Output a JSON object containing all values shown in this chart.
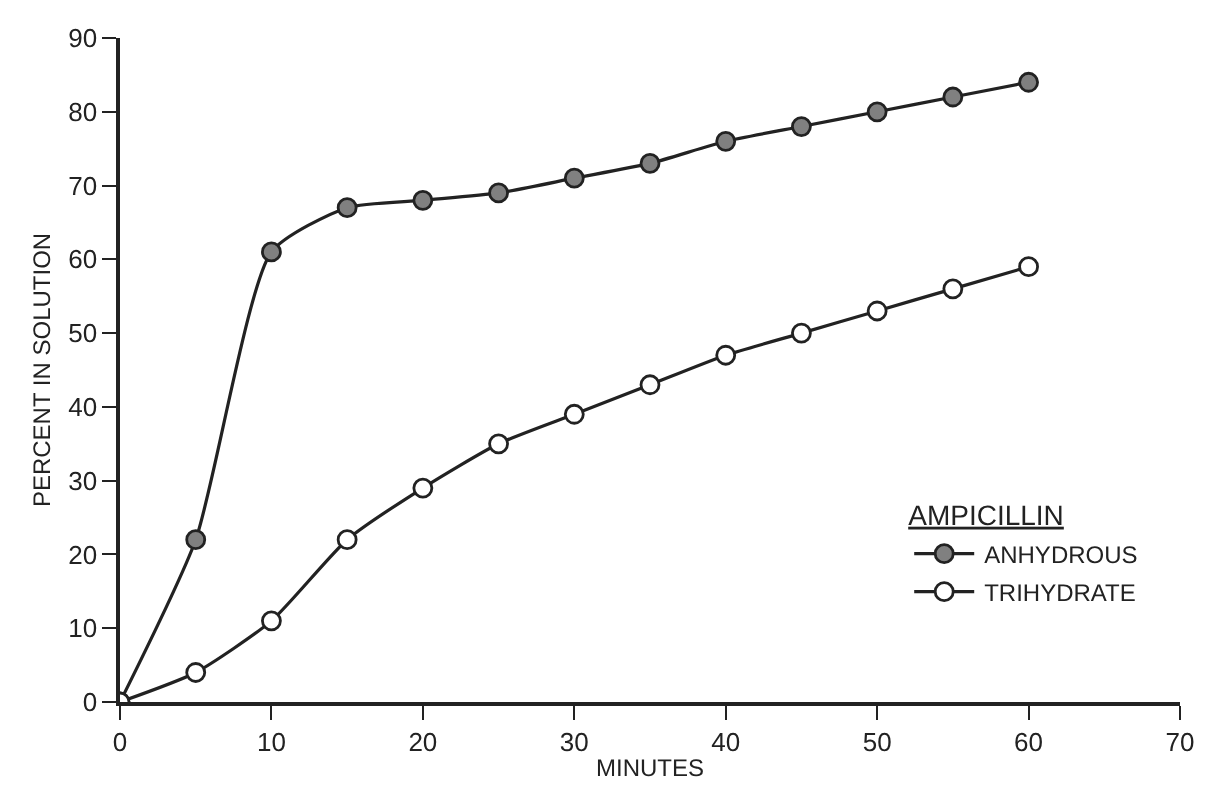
{
  "chart_data": {
    "type": "line",
    "xlabel": "MINUTES",
    "ylabel": "PERCENT IN SOLUTION",
    "legend_title": "AMPICILLIN",
    "x": [
      0,
      5,
      10,
      15,
      20,
      25,
      30,
      35,
      40,
      45,
      50,
      55,
      60
    ],
    "series": [
      {
        "name": "ANHYDROUS",
        "color": "#808080",
        "values": [
          0,
          22,
          61,
          67,
          68,
          69,
          71,
          73,
          76,
          78,
          80,
          82,
          84
        ]
      },
      {
        "name": "TRIHYDRATE",
        "color": "#ffffff",
        "values": [
          0,
          4,
          11,
          22,
          29,
          35,
          39,
          43,
          47,
          50,
          53,
          56,
          59
        ]
      }
    ],
    "xlim": [
      0,
      70
    ],
    "xticks": [
      0,
      10,
      20,
      30,
      40,
      50,
      60,
      70
    ],
    "ylim": [
      0,
      90
    ],
    "yticks": [
      0,
      10,
      20,
      30,
      40,
      50,
      60,
      70,
      80,
      90
    ],
    "legend": "bottom right",
    "marker": "circle",
    "line_style": "solid"
  }
}
